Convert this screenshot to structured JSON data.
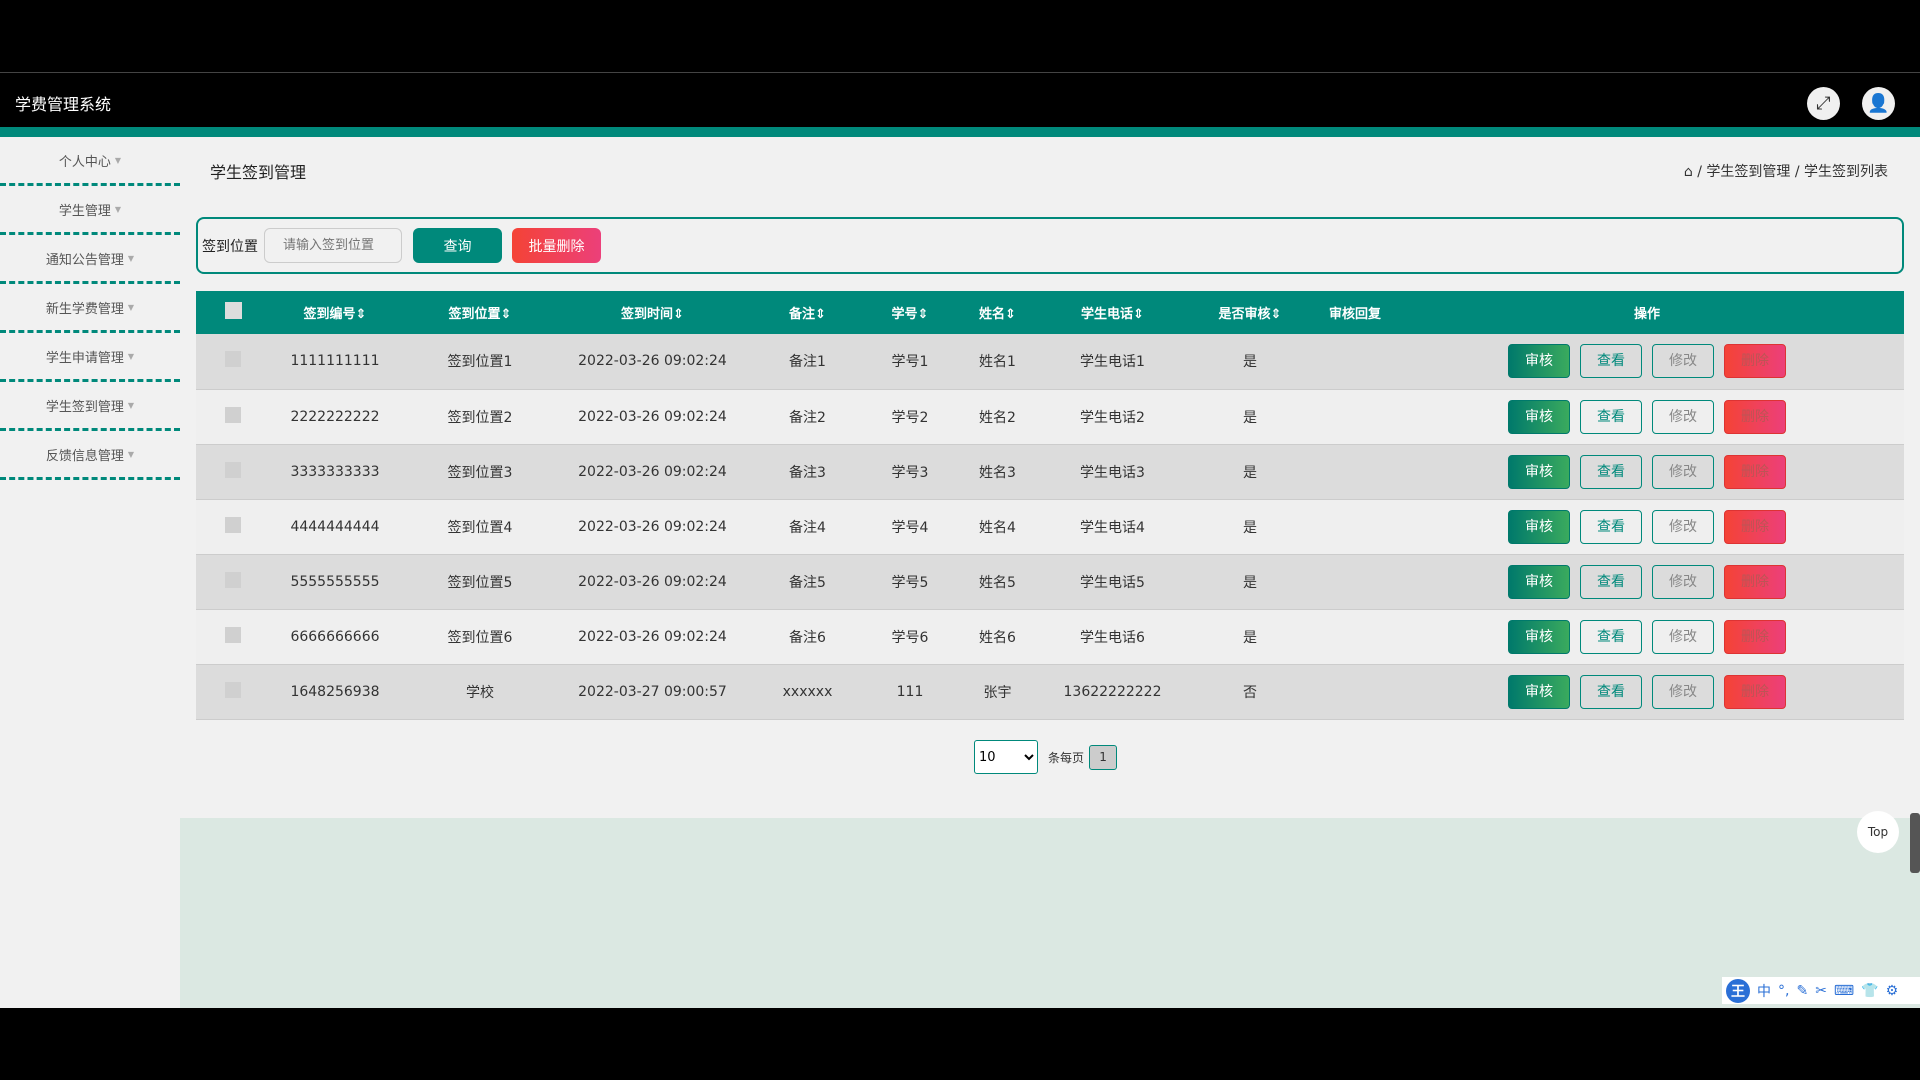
{
  "header": {
    "app_title": "学费管理系统",
    "fullscreen_icon": "⤢",
    "user_icon": "👤"
  },
  "sidebar": {
    "items": [
      {
        "label": "个人中心"
      },
      {
        "label": "学生管理"
      },
      {
        "label": "通知公告管理"
      },
      {
        "label": "新生学费管理"
      },
      {
        "label": "学生申请管理"
      },
      {
        "label": "学生签到管理"
      },
      {
        "label": "反馈信息管理"
      }
    ]
  },
  "page": {
    "title": "学生签到管理",
    "breadcrumb": {
      "home_icon": "⌂",
      "sep": "/",
      "level1": "学生签到管理",
      "level2": "学生签到列表"
    }
  },
  "search": {
    "label": "签到位置",
    "placeholder": "请输入签到位置",
    "query": "查询",
    "batch_delete": "批量删除"
  },
  "table": {
    "headers": [
      "签到编号⇕",
      "签到位置⇕",
      "签到时间⇕",
      "备注⇕",
      "学号⇕",
      "姓名⇕",
      "学生电话⇕",
      "是否审核⇕",
      "审核回复",
      "操作"
    ],
    "actions": {
      "audit": "审核",
      "view": "查看",
      "edit": "修改",
      "delete": "删除"
    },
    "rows": [
      [
        "1111111111",
        "签到位置1",
        "2022-03-26 09:02:24",
        "备注1",
        "学号1",
        "姓名1",
        "学生电话1",
        "是",
        ""
      ],
      [
        "2222222222",
        "签到位置2",
        "2022-03-26 09:02:24",
        "备注2",
        "学号2",
        "姓名2",
        "学生电话2",
        "是",
        ""
      ],
      [
        "3333333333",
        "签到位置3",
        "2022-03-26 09:02:24",
        "备注3",
        "学号3",
        "姓名3",
        "学生电话3",
        "是",
        ""
      ],
      [
        "4444444444",
        "签到位置4",
        "2022-03-26 09:02:24",
        "备注4",
        "学号4",
        "姓名4",
        "学生电话4",
        "是",
        ""
      ],
      [
        "5555555555",
        "签到位置5",
        "2022-03-26 09:02:24",
        "备注5",
        "学号5",
        "姓名5",
        "学生电话5",
        "是",
        ""
      ],
      [
        "6666666666",
        "签到位置6",
        "2022-03-26 09:02:24",
        "备注6",
        "学号6",
        "姓名6",
        "学生电话6",
        "是",
        ""
      ],
      [
        "1648256938",
        "学校",
        "2022-03-27 09:00:57",
        "xxxxxx",
        "111",
        "张宇",
        "13622222222",
        "否",
        ""
      ]
    ]
  },
  "pagination": {
    "page_size": "10",
    "per_page_label": "条每页",
    "current_page": "1"
  },
  "back_to_top": "Top",
  "ime": {
    "logo": "王",
    "items": [
      "中",
      "°,",
      "✎",
      "✂",
      "⌨",
      "👕",
      "⚙"
    ]
  }
}
